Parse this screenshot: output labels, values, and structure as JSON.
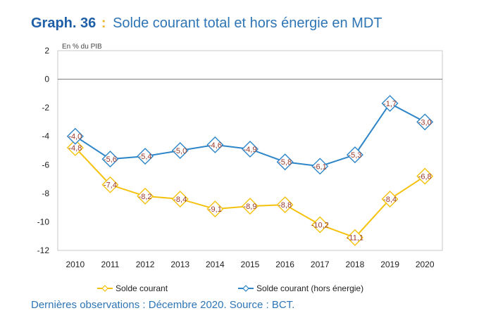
{
  "header": {
    "title_lead": "Graph. 36",
    "title_sep": ":",
    "title_text": "Solde courant total et hors énergie en MDT"
  },
  "footer": {
    "note": "Dernières observations : Décembre 2020. Source : BCT."
  },
  "chart_data": {
    "type": "line",
    "unit_label": "En % du PIB",
    "categories": [
      "2010",
      "2011",
      "2012",
      "2013",
      "2014",
      "2015",
      "2016",
      "2017",
      "2018",
      "2019",
      "2020"
    ],
    "ylim": [
      -12,
      2
    ],
    "yticks": [
      2,
      0,
      -2,
      -4,
      -6,
      -8,
      -10,
      -12
    ],
    "ytick_labels": [
      "2",
      "0",
      "-2",
      "-4",
      "-6",
      "-8",
      "-10",
      "-12"
    ],
    "grid": false,
    "legend_position": "bottom",
    "series": [
      {
        "name": "Solde courant",
        "color": "#f4c20d",
        "values": [
          -4.8,
          -7.4,
          -8.2,
          -8.4,
          -9.1,
          -8.9,
          -8.8,
          -10.2,
          -11.1,
          -8.4,
          -6.8
        ],
        "labels": [
          "-4,8",
          "-7,4",
          "-8,2",
          "-8,4",
          "-9,1",
          "-8,9",
          "-8,8",
          "-10,2",
          "-11,1",
          "-8,4",
          "-6,8"
        ]
      },
      {
        "name": "Solde courant (hors énergie)",
        "color": "#2e86c8",
        "values": [
          -4.0,
          -5.6,
          -5.4,
          -5.0,
          -4.6,
          -4.9,
          -5.8,
          -6.1,
          -5.3,
          -1.7,
          -3.0
        ],
        "labels": [
          "-4,0",
          "-5,6",
          "-5,4",
          "-5,0",
          "-4,6",
          "-4,9",
          "-5,8",
          "-6,1",
          "-5,3",
          "-1,7",
          "-3,0"
        ]
      }
    ]
  }
}
